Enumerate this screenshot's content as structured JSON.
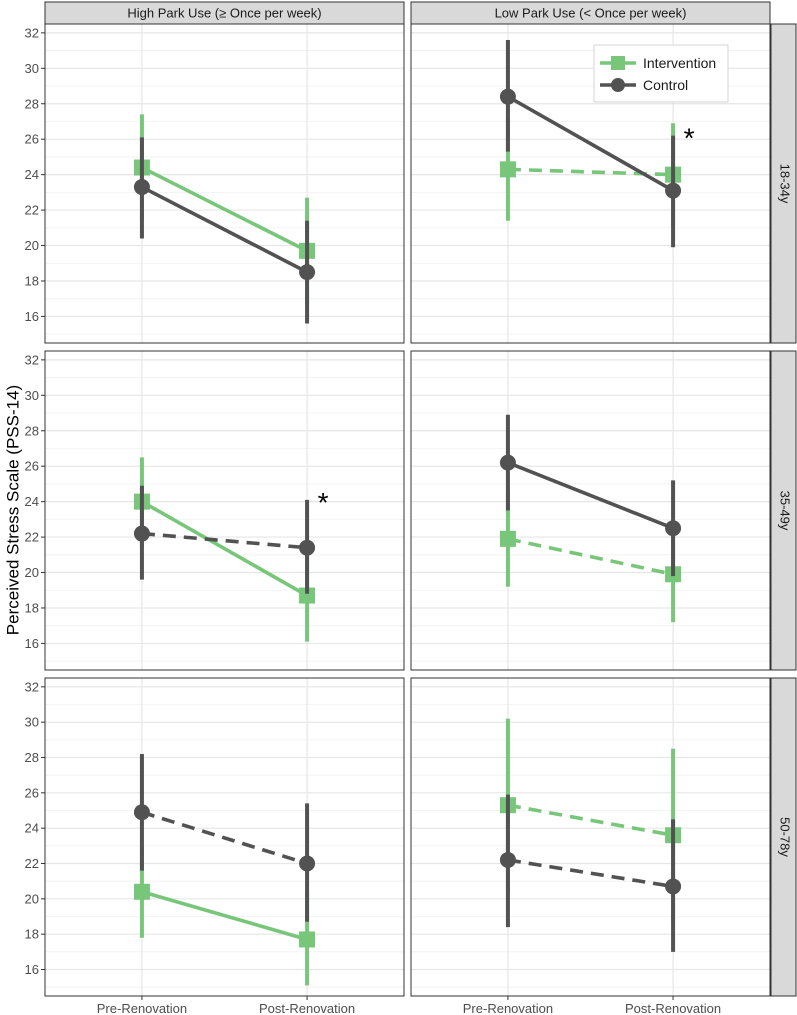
{
  "chart_data": {
    "type": "line",
    "ylabel": "Perceived Stress Scale (PSS-14)",
    "x_categories": [
      "Pre-Renovation",
      "Post-Renovation"
    ],
    "y_ticks": [
      16,
      18,
      20,
      22,
      24,
      26,
      28,
      30,
      32
    ],
    "ylim": [
      14.5,
      32.5
    ],
    "grid": true,
    "legend_position": "top-right",
    "colors": {
      "Intervention": "#78c679",
      "Control": "#525252",
      "strip_fill": "#d9d9d9"
    },
    "column_strips": [
      "High Park Use (≥ Once per week)",
      "Low Park Use (< Once per week)"
    ],
    "row_strips": [
      "18-34y",
      "35-49y",
      "50-78y"
    ],
    "legend": [
      "Intervention",
      "Control"
    ],
    "significance_mark": "*",
    "panels": [
      {
        "row": 0,
        "col": 0,
        "series": [
          {
            "name": "Intervention",
            "values": [
              24.4,
              19.7
            ],
            "low": [
              21.5,
              16.7
            ],
            "high": [
              27.4,
              22.7
            ],
            "dashed": false
          },
          {
            "name": "Control",
            "values": [
              23.3,
              18.5
            ],
            "low": [
              20.4,
              15.6
            ],
            "high": [
              26.1,
              21.4
            ],
            "dashed": false
          }
        ],
        "sig": false
      },
      {
        "row": 0,
        "col": 1,
        "series": [
          {
            "name": "Intervention",
            "values": [
              24.3,
              24.0
            ],
            "low": [
              21.4,
              21.1
            ],
            "high": [
              27.2,
              26.9
            ],
            "dashed": true
          },
          {
            "name": "Control",
            "values": [
              28.4,
              23.1
            ],
            "low": [
              25.3,
              19.9
            ],
            "high": [
              31.6,
              26.2
            ],
            "dashed": false
          }
        ],
        "sig": true
      },
      {
        "row": 1,
        "col": 0,
        "series": [
          {
            "name": "Intervention",
            "values": [
              24.0,
              18.7
            ],
            "low": [
              21.4,
              16.1
            ],
            "high": [
              26.5,
              21.3
            ],
            "dashed": false
          },
          {
            "name": "Control",
            "values": [
              22.2,
              21.4
            ],
            "low": [
              19.6,
              18.8
            ],
            "high": [
              24.9,
              24.1
            ],
            "dashed": true
          }
        ],
        "sig": true
      },
      {
        "row": 1,
        "col": 1,
        "series": [
          {
            "name": "Intervention",
            "values": [
              21.9,
              19.9
            ],
            "low": [
              19.2,
              17.2
            ],
            "high": [
              24.6,
              22.5
            ],
            "dashed": true
          },
          {
            "name": "Control",
            "values": [
              26.2,
              22.5
            ],
            "low": [
              23.5,
              19.8
            ],
            "high": [
              28.9,
              25.2
            ],
            "dashed": false
          }
        ],
        "sig": false
      },
      {
        "row": 2,
        "col": 0,
        "series": [
          {
            "name": "Intervention",
            "values": [
              20.4,
              17.7
            ],
            "low": [
              17.8,
              15.1
            ],
            "high": [
              23.0,
              20.3
            ],
            "dashed": false
          },
          {
            "name": "Control",
            "values": [
              24.9,
              22.0
            ],
            "low": [
              21.6,
              18.7
            ],
            "high": [
              28.2,
              25.4
            ],
            "dashed": true
          }
        ],
        "sig": false
      },
      {
        "row": 2,
        "col": 1,
        "series": [
          {
            "name": "Intervention",
            "values": [
              25.3,
              23.6
            ],
            "low": [
              20.4,
              18.7
            ],
            "high": [
              30.2,
              28.5
            ],
            "dashed": true
          },
          {
            "name": "Control",
            "values": [
              22.2,
              20.7
            ],
            "low": [
              18.4,
              17.0
            ],
            "high": [
              25.9,
              24.5
            ],
            "dashed": true
          }
        ],
        "sig": false
      }
    ]
  }
}
